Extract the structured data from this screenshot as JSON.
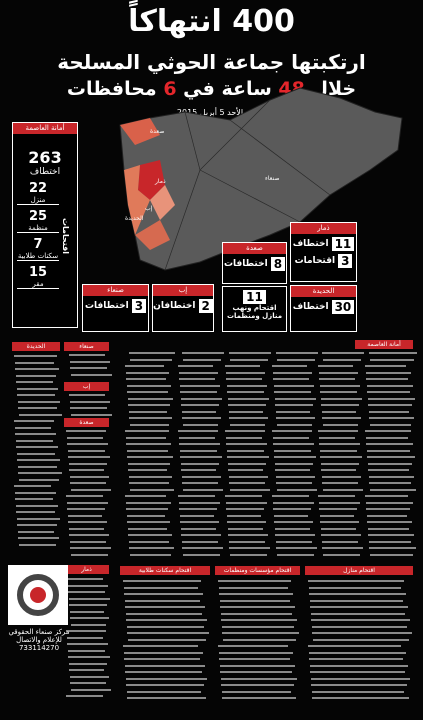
{
  "header": {
    "count": "400",
    "word": "انتهاكاً",
    "line2": "ارتكبتها جماعة الحوثي المسلحة",
    "line3a": "خلال",
    "hours": "48",
    "line3b": "ساعة في",
    "govs": "6",
    "line3c": "محافظات",
    "date": "الأحد 5 أبريل 2015"
  },
  "capital": {
    "title": "أمانة العاصمة",
    "kidnap_num": "263",
    "kidnap": "اختطاف",
    "raids": "اقتحامات",
    "items": [
      {
        "num": "22",
        "label": "منزل"
      },
      {
        "num": "25",
        "label": "منظمة"
      },
      {
        "num": "7",
        "label": "سكنات طلابية"
      },
      {
        "num": "15",
        "label": "مقر"
      }
    ]
  },
  "map_labels": [
    "صعدة",
    "صنعاء",
    "ذمار",
    "إب",
    "الحديدة"
  ],
  "boxes": [
    {
      "title": "ذمار",
      "rows": [
        {
          "num": "11",
          "label": "اختطاف"
        },
        {
          "num": "3",
          "label": "اقتحامات"
        }
      ]
    },
    {
      "title": "صعدة",
      "rows": [
        {
          "num": "8",
          "label": "اختطافات"
        }
      ]
    },
    {
      "title": "",
      "rows": [
        {
          "num": "11",
          "label": "اقتحام ونهب منازل ومنظمات"
        }
      ]
    },
    {
      "title": "الحديدة",
      "rows": [
        {
          "num": "30",
          "label": "اختطاف"
        }
      ]
    },
    {
      "title": "إب",
      "rows": [
        {
          "num": "2",
          "label": "اختطافان"
        }
      ]
    },
    {
      "title": "صنعاء",
      "rows": [
        {
          "num": "3",
          "label": "اختطافات"
        }
      ]
    }
  ],
  "lists": {
    "capital": "أمانة العاصمة",
    "hodeidah": "الحديدة",
    "sanaa": "صنعاء",
    "ibb": "إب",
    "saada": "صعدة",
    "dhamar": "ذمار"
  },
  "panels": [
    "اقتحام سكنات طلابية",
    "اقتحام مؤسسات ومنظمات",
    "اقتحام منازل"
  ],
  "footer": {
    "org": "مركز صنعاء الحقوقي",
    "sub": "للإعلام والاتصال",
    "phone": "733114270"
  }
}
